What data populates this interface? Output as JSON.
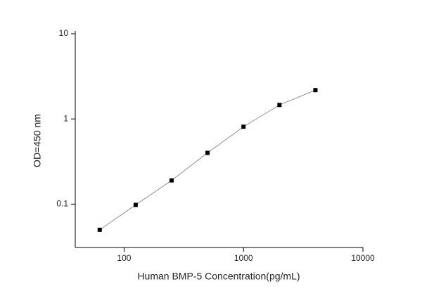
{
  "chart_data": {
    "type": "line",
    "x_label": "Human BMP-5 Concentration(pg/mL)",
    "y_label": "OD=450 nm",
    "x": [
      62.5,
      125,
      250,
      500,
      1000,
      2000,
      4000
    ],
    "series": [
      {
        "color": "#000000",
        "values": [
          0.05,
          0.098,
          0.19,
          0.4,
          0.81,
          1.46,
          2.18
        ]
      }
    ],
    "x_log": true,
    "y_log": true,
    "xlim": [
      39,
      10000
    ],
    "xticks": [
      100,
      1000,
      10000
    ],
    "ylim": [
      0.031,
      10
    ],
    "yticks": [
      0.1,
      1,
      10
    ],
    "grid": false
  }
}
